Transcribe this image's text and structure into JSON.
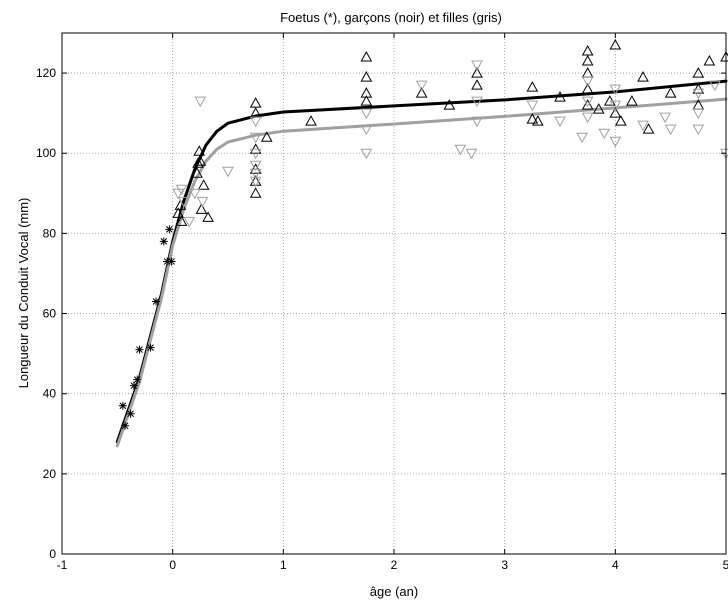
{
  "chart_data": {
    "type": "scatter",
    "title": "Foetus (*), garçons (noir) et filles (gris)",
    "xlabel": "âge (an)",
    "ylabel": "Longueur du Conduit Vocal (mm)",
    "xlim": [
      -1,
      5
    ],
    "ylim": [
      0,
      130
    ],
    "xticks": [
      -1,
      0,
      1,
      2,
      3,
      4,
      5
    ],
    "yticks": [
      0,
      20,
      40,
      60,
      80,
      100,
      120
    ],
    "grid": true,
    "colors": {
      "garcons": "#000000",
      "filles": "#a0a0a0",
      "foetus": "#000000"
    },
    "series": [
      {
        "marker": "asterisk",
        "color": "#000000",
        "points": [
          [
            -0.45,
            37
          ],
          [
            -0.43,
            32
          ],
          [
            -0.38,
            35
          ],
          [
            -0.35,
            42
          ],
          [
            -0.32,
            43.5
          ],
          [
            -0.3,
            51
          ],
          [
            -0.2,
            51.5
          ],
          [
            -0.15,
            63
          ],
          [
            -0.08,
            78
          ],
          [
            -0.05,
            73
          ],
          [
            -0.03,
            81
          ],
          [
            -0.01,
            73
          ]
        ]
      },
      {
        "marker": "triangle-up",
        "color": "#000000",
        "points": [
          [
            0.05,
            85
          ],
          [
            0.07,
            87
          ],
          [
            0.08,
            83
          ],
          [
            0.22,
            95
          ],
          [
            0.23,
            97.5
          ],
          [
            0.24,
            100.5
          ],
          [
            0.25,
            98
          ],
          [
            0.26,
            86
          ],
          [
            0.28,
            92
          ],
          [
            0.32,
            84
          ],
          [
            0.75,
            112.5
          ],
          [
            0.75,
            110
          ],
          [
            0.75,
            101
          ],
          [
            0.75,
            96
          ],
          [
            0.75,
            93
          ],
          [
            0.75,
            90
          ],
          [
            0.85,
            104
          ],
          [
            1.25,
            108
          ],
          [
            1.75,
            124
          ],
          [
            1.75,
            119
          ],
          [
            1.75,
            115
          ],
          [
            1.75,
            113
          ],
          [
            2.25,
            115
          ],
          [
            2.5,
            112
          ],
          [
            2.75,
            120
          ],
          [
            2.75,
            117
          ],
          [
            3.25,
            116.5
          ],
          [
            3.25,
            108.5
          ],
          [
            3.3,
            108
          ],
          [
            3.5,
            114
          ],
          [
            3.75,
            125.5
          ],
          [
            3.75,
            123
          ],
          [
            3.75,
            120
          ],
          [
            3.75,
            116
          ],
          [
            3.75,
            112
          ],
          [
            3.85,
            111
          ],
          [
            3.95,
            113
          ],
          [
            4.0,
            127
          ],
          [
            4.0,
            110
          ],
          [
            4.05,
            108
          ],
          [
            4.15,
            113
          ],
          [
            4.25,
            119
          ],
          [
            4.3,
            106
          ],
          [
            4.5,
            115
          ],
          [
            4.75,
            120
          ],
          [
            4.75,
            116
          ],
          [
            4.75,
            112
          ],
          [
            4.85,
            123
          ],
          [
            5.0,
            124
          ]
        ]
      },
      {
        "marker": "triangle-down",
        "color": "#a0a0a0",
        "points": [
          [
            0.05,
            90
          ],
          [
            0.08,
            91
          ],
          [
            0.1,
            88
          ],
          [
            0.15,
            83
          ],
          [
            0.2,
            90
          ],
          [
            0.25,
            113
          ],
          [
            0.27,
            88
          ],
          [
            0.5,
            95.5
          ],
          [
            0.75,
            108
          ],
          [
            0.75,
            104
          ],
          [
            0.75,
            100
          ],
          [
            0.75,
            97
          ],
          [
            0.75,
            95
          ],
          [
            0.75,
            93
          ],
          [
            1.75,
            110
          ],
          [
            1.75,
            106
          ],
          [
            1.75,
            100
          ],
          [
            2.25,
            117
          ],
          [
            2.6,
            101
          ],
          [
            2.7,
            100
          ],
          [
            2.75,
            122
          ],
          [
            2.75,
            113
          ],
          [
            2.75,
            108
          ],
          [
            3.25,
            112
          ],
          [
            3.5,
            108
          ],
          [
            3.7,
            104
          ],
          [
            3.75,
            118
          ],
          [
            3.75,
            113
          ],
          [
            3.75,
            109
          ],
          [
            3.9,
            105
          ],
          [
            4.0,
            116
          ],
          [
            4.0,
            112
          ],
          [
            4.0,
            103
          ],
          [
            4.25,
            107
          ],
          [
            4.45,
            109
          ],
          [
            4.5,
            106
          ],
          [
            4.75,
            115
          ],
          [
            4.75,
            110
          ],
          [
            4.75,
            106
          ],
          [
            4.9,
            117
          ],
          [
            5.0,
            100
          ]
        ]
      },
      {
        "marker": "line",
        "color": "#000000",
        "points": [
          [
            -0.5,
            28
          ],
          [
            -0.3,
            44
          ],
          [
            -0.1,
            65
          ],
          [
            0.0,
            78
          ],
          [
            0.1,
            88
          ],
          [
            0.2,
            96
          ],
          [
            0.3,
            102
          ],
          [
            0.4,
            105.5
          ],
          [
            0.5,
            107.5
          ],
          [
            0.75,
            109.3
          ],
          [
            1.0,
            110.3
          ],
          [
            2.0,
            111.8
          ],
          [
            3.0,
            113.3
          ],
          [
            4.0,
            115.3
          ],
          [
            5.0,
            118
          ]
        ]
      },
      {
        "marker": "line",
        "color": "#a0a0a0",
        "points": [
          [
            -0.5,
            27
          ],
          [
            -0.3,
            43
          ],
          [
            -0.1,
            64
          ],
          [
            0.0,
            77
          ],
          [
            0.1,
            86
          ],
          [
            0.2,
            93
          ],
          [
            0.3,
            98
          ],
          [
            0.4,
            101
          ],
          [
            0.5,
            102.8
          ],
          [
            0.75,
            104.5
          ],
          [
            1.0,
            105.5
          ],
          [
            2.0,
            107.3
          ],
          [
            3.0,
            109.2
          ],
          [
            4.0,
            111.3
          ],
          [
            5.0,
            113.5
          ]
        ]
      }
    ]
  }
}
